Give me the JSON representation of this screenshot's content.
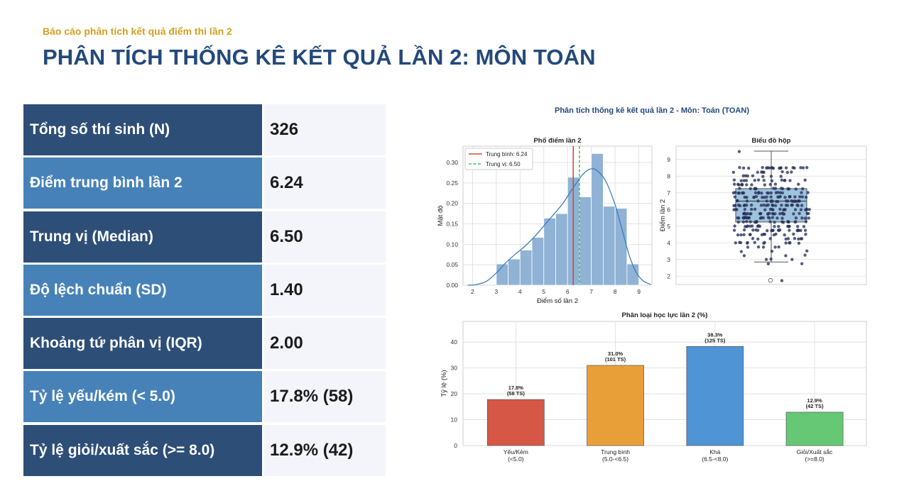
{
  "header": {
    "subtitle": "Báo cáo phân tích kết quả điểm thi lần 2",
    "title": "PHÂN TÍCH THỐNG KÊ KẾT QUẢ LẦN 2: MÔN TOÁN"
  },
  "stats": [
    {
      "label": "Tổng số thí sinh (N)",
      "value": "326"
    },
    {
      "label": "Điểm trung bình lần 2",
      "value": "6.24"
    },
    {
      "label": "Trung vị (Median)",
      "value": "6.50"
    },
    {
      "label": "Độ lệch chuẩn (SD)",
      "value": "1.40"
    },
    {
      "label": "Khoảng tứ phân vị (IQR)",
      "value": "2.00"
    },
    {
      "label": "Tỷ lệ yếu/kém (< 5.0)",
      "value": "17.8% (58)"
    },
    {
      "label": "Tỷ lệ giỏi/xuất sắc (>= 8.0)",
      "value": "12.9% (42)"
    }
  ],
  "figure_title": "Phân tích thống kê kết quả lần 2 - Môn: Toán (TOAN)",
  "chart_data": [
    {
      "type": "bar",
      "title": "Phổ điểm lần 2",
      "xlabel": "Điểm số lần 2",
      "ylabel": "Mật độ",
      "xlim": [
        1.6,
        9.55
      ],
      "ylim": [
        0,
        0.34
      ],
      "x_ticks": [
        "2",
        "3",
        "4",
        "5",
        "6",
        "7",
        "8",
        "9"
      ],
      "y_ticks": [
        "0.00",
        "0.05",
        "0.10",
        "0.15",
        "0.20",
        "0.25",
        "0.30"
      ],
      "bin_edges": [
        2.0,
        2.5,
        3.0,
        3.5,
        4.0,
        4.5,
        5.0,
        5.5,
        6.0,
        6.5,
        7.0,
        7.5,
        8.0,
        8.5,
        9.0
      ],
      "values": [
        0.0,
        0.0,
        0.052,
        0.064,
        0.086,
        0.117,
        0.164,
        0.175,
        0.264,
        0.216,
        0.322,
        0.193,
        0.188,
        0.052
      ],
      "kde": {
        "x": [
          1.8,
          2.2,
          2.6,
          3.0,
          3.4,
          3.8,
          4.2,
          4.6,
          5.0,
          5.4,
          5.8,
          6.2,
          6.6,
          6.9,
          7.2,
          7.6,
          8.0,
          8.3,
          8.6,
          8.9,
          9.2,
          9.5
        ],
        "y": [
          0.0,
          0.002,
          0.01,
          0.03,
          0.055,
          0.076,
          0.095,
          0.118,
          0.145,
          0.172,
          0.2,
          0.235,
          0.268,
          0.283,
          0.282,
          0.255,
          0.197,
          0.135,
          0.072,
          0.03,
          0.01,
          0.002
        ]
      },
      "mean": 6.24,
      "median": 6.5,
      "legend": [
        "Trung bình: 6.24",
        "Trung vị: 6.50"
      ],
      "legend_position": "top-left",
      "colors": {
        "bars": "#8fb2d5",
        "kde": "#3b7dbe",
        "mean": "#d64b36",
        "median": "#4cc46a"
      }
    },
    {
      "type": "box",
      "title": "Biểu đồ hộp",
      "ylabel": "Điểm lần 2",
      "ylim": [
        1.5,
        9.8
      ],
      "y_ticks": [
        "2",
        "3",
        "4",
        "5",
        "6",
        "7",
        "8",
        "9"
      ],
      "box": {
        "min": 2.85,
        "q1": 5.25,
        "median": 6.5,
        "q3": 7.25,
        "max": 9.5,
        "outliers": [
          1.75,
          1.75
        ]
      },
      "points_count": 326,
      "colors": {
        "box": "#9ec3dd",
        "points": "#27305a"
      }
    },
    {
      "type": "bar",
      "title": "Phân loại học lực lần 2 (%)",
      "ylabel": "Tỷ lệ (%)",
      "ylim": [
        0,
        48
      ],
      "y_ticks": [
        "0",
        "10",
        "20",
        "30",
        "40"
      ],
      "categories": [
        "Yếu/Kém\n(<5.0)",
        "Trung bình\n(5.0-<6.5)",
        "Khá\n(6.5-<8.0)",
        "Giỏi/Xuất sắc\n(>=8.0)"
      ],
      "values": [
        17.8,
        31.0,
        38.3,
        12.9
      ],
      "labels": [
        "17.8%\n(58 TS)",
        "31.0%\n(101 TS)",
        "38.3%\n(125 TS)",
        "12.9%\n(42 TS)"
      ],
      "colors": [
        "#d65745",
        "#e89f38",
        "#4f94d5",
        "#66c874"
      ]
    }
  ]
}
